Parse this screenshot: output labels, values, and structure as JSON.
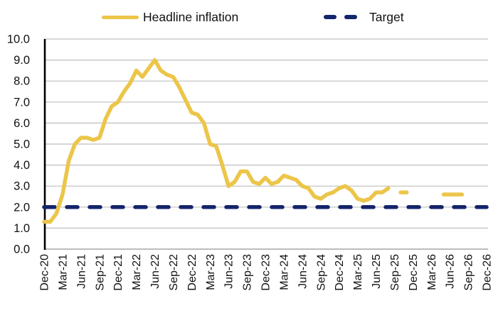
{
  "legend": {
    "items": [
      {
        "label": "Headline inflation",
        "color": "#ECC549",
        "style": "solid"
      },
      {
        "label": "Target",
        "color": "#15256B",
        "style": "dashed"
      }
    ]
  },
  "colors": {
    "background": "#FFFFFF",
    "grid": "#BFBFBF",
    "axis_y": "#000000",
    "axis_x": "#A6A6A6",
    "text": "#111111",
    "headline": "#ECC549",
    "target": "#15256B"
  },
  "chart_data": {
    "type": "line",
    "title": "",
    "xlabel": "",
    "ylabel": "",
    "grid": "horizontal",
    "legend_position": "top",
    "y_axis": {
      "min": 0,
      "max": 10,
      "step": 1,
      "tick_labels": [
        "0.0",
        "1.0",
        "2.0",
        "3.0",
        "4.0",
        "5.0",
        "6.0",
        "7.0",
        "8.0",
        "9.0",
        "10.0"
      ]
    },
    "x_axis": {
      "start_month": "Dec-20",
      "end_month": "Dec-26",
      "months_total": 73,
      "tick_every_months": 3,
      "tick_labels": [
        "Dec-20",
        "Mar-21",
        "Jun-21",
        "Sep-21",
        "Dec-21",
        "Mar-22",
        "Jun-22",
        "Sep-22",
        "Dec-22",
        "Mar-23",
        "Jun-23",
        "Sep-23",
        "Dec-23",
        "Mar-24",
        "Jun-24",
        "Sep-24",
        "Dec-24",
        "Mar-25",
        "Jun-25",
        "Sep-25",
        "Dec-25",
        "Mar-26",
        "Jun-26",
        "Sep-26",
        "Dec-26"
      ]
    },
    "series": [
      {
        "name": "Headline inflation",
        "style": "solid",
        "color": "#ECC549",
        "start_month": "Dec-20",
        "end_month": "Aug-25",
        "values": [
          1.3,
          1.3,
          1.7,
          2.6,
          4.2,
          5.0,
          5.3,
          5.3,
          5.2,
          5.3,
          6.2,
          6.8,
          7.0,
          7.5,
          7.9,
          8.5,
          8.2,
          8.6,
          9.0,
          8.5,
          8.3,
          8.2,
          7.7,
          7.1,
          6.5,
          6.4,
          6.0,
          5.0,
          4.9,
          4.0,
          3.0,
          3.2,
          3.7,
          3.7,
          3.2,
          3.1,
          3.4,
          3.1,
          3.2,
          3.5,
          3.4,
          3.3,
          3.0,
          2.9,
          2.5,
          2.4,
          2.6,
          2.7,
          2.9,
          3.0,
          2.8,
          2.4,
          2.3,
          2.4,
          2.7,
          2.7,
          2.9
        ]
      },
      {
        "name": "Headline inflation forecast",
        "style": "dashed-segments",
        "color": "#ECC549",
        "segments": [
          {
            "start": "Oct-25",
            "end": "Nov-25",
            "value": 2.7
          },
          {
            "start": "May-26",
            "end": "Aug-26",
            "value": 2.6
          }
        ]
      },
      {
        "name": "Target",
        "style": "dashed",
        "color": "#15256B",
        "value": 2.0,
        "start_month": "Dec-20",
        "end_month": "Dec-26"
      }
    ]
  }
}
